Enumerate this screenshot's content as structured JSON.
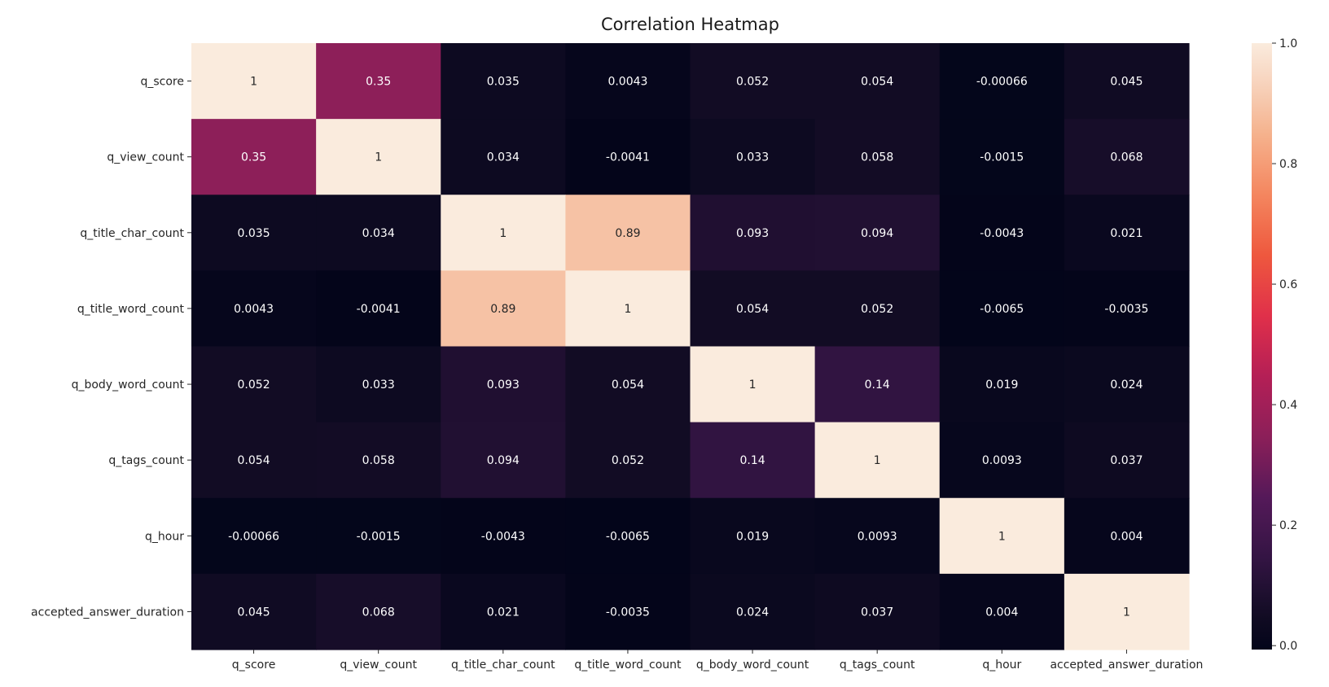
{
  "chart_data": {
    "type": "heatmap",
    "title": "Correlation Heatmap",
    "xlabel": "",
    "ylabel": "",
    "x_categories": [
      "q_score",
      "q_view_count",
      "q_title_char_count",
      "q_title_word_count",
      "q_body_word_count",
      "q_tags_count",
      "q_hour",
      "accepted_answer_duration"
    ],
    "y_categories": [
      "q_score",
      "q_view_count",
      "q_title_char_count",
      "q_title_word_count",
      "q_body_word_count",
      "q_tags_count",
      "q_hour",
      "accepted_answer_duration"
    ],
    "values": [
      [
        1,
        0.35,
        0.035,
        0.0043,
        0.052,
        0.054,
        -0.00066,
        0.045
      ],
      [
        0.35,
        1,
        0.034,
        -0.0041,
        0.033,
        0.058,
        -0.0015,
        0.068
      ],
      [
        0.035,
        0.034,
        1,
        0.89,
        0.093,
        0.094,
        -0.0043,
        0.021
      ],
      [
        0.0043,
        -0.0041,
        0.89,
        1,
        0.054,
        0.052,
        -0.0065,
        -0.0035
      ],
      [
        0.052,
        0.033,
        0.093,
        0.054,
        1,
        0.14,
        0.019,
        0.024
      ],
      [
        0.054,
        0.058,
        0.094,
        0.052,
        0.14,
        1,
        0.0093,
        0.037
      ],
      [
        -0.00066,
        -0.0015,
        -0.0043,
        -0.0065,
        0.019,
        0.0093,
        1,
        0.004
      ],
      [
        0.045,
        0.068,
        0.021,
        -0.0035,
        0.024,
        0.037,
        0.004,
        1
      ]
    ],
    "annotations_shown": true,
    "colormap": "rocket",
    "colorbar": {
      "range": [
        -0.0065,
        1.0
      ],
      "ticks": [
        0.0,
        0.2,
        0.4,
        0.6,
        0.8,
        1.0
      ],
      "tick_labels": [
        "0.0",
        "0.2",
        "0.4",
        "0.6",
        "0.8",
        "1.0"
      ],
      "placement": "right"
    },
    "grid": false
  }
}
